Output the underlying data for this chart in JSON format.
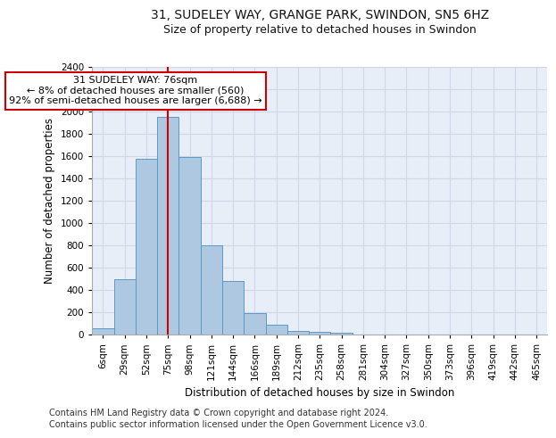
{
  "title_line1": "31, SUDELEY WAY, GRANGE PARK, SWINDON, SN5 6HZ",
  "title_line2": "Size of property relative to detached houses in Swindon",
  "xlabel": "Distribution of detached houses by size in Swindon",
  "ylabel": "Number of detached properties",
  "footer_line1": "Contains HM Land Registry data © Crown copyright and database right 2024.",
  "footer_line2": "Contains public sector information licensed under the Open Government Licence v3.0.",
  "categories": [
    "6sqm",
    "29sqm",
    "52sqm",
    "75sqm",
    "98sqm",
    "121sqm",
    "144sqm",
    "166sqm",
    "189sqm",
    "212sqm",
    "235sqm",
    "258sqm",
    "281sqm",
    "304sqm",
    "327sqm",
    "350sqm",
    "373sqm",
    "396sqm",
    "419sqm",
    "442sqm",
    "465sqm"
  ],
  "values": [
    60,
    500,
    1580,
    1950,
    1590,
    800,
    480,
    195,
    90,
    35,
    25,
    20,
    0,
    0,
    0,
    0,
    0,
    0,
    0,
    0,
    0
  ],
  "bar_color": "#adc8e0",
  "bar_edge_color": "#5a9ac8",
  "annotation_text": "31 SUDELEY WAY: 76sqm\n← 8% of detached houses are smaller (560)\n92% of semi-detached houses are larger (6,688) →",
  "annotation_box_color": "#ffffff",
  "annotation_box_edge_color": "#cc0000",
  "vline_color": "#cc0000",
  "vline_x": 3,
  "ylim": [
    0,
    2400
  ],
  "yticks": [
    0,
    200,
    400,
    600,
    800,
    1000,
    1200,
    1400,
    1600,
    1800,
    2000,
    2200,
    2400
  ],
  "grid_color": "#d0d8e8",
  "bg_color": "#e8eef8",
  "title_fontsize": 10,
  "subtitle_fontsize": 9,
  "axis_label_fontsize": 8.5,
  "tick_fontsize": 7.5,
  "annotation_fontsize": 8,
  "footer_fontsize": 7
}
